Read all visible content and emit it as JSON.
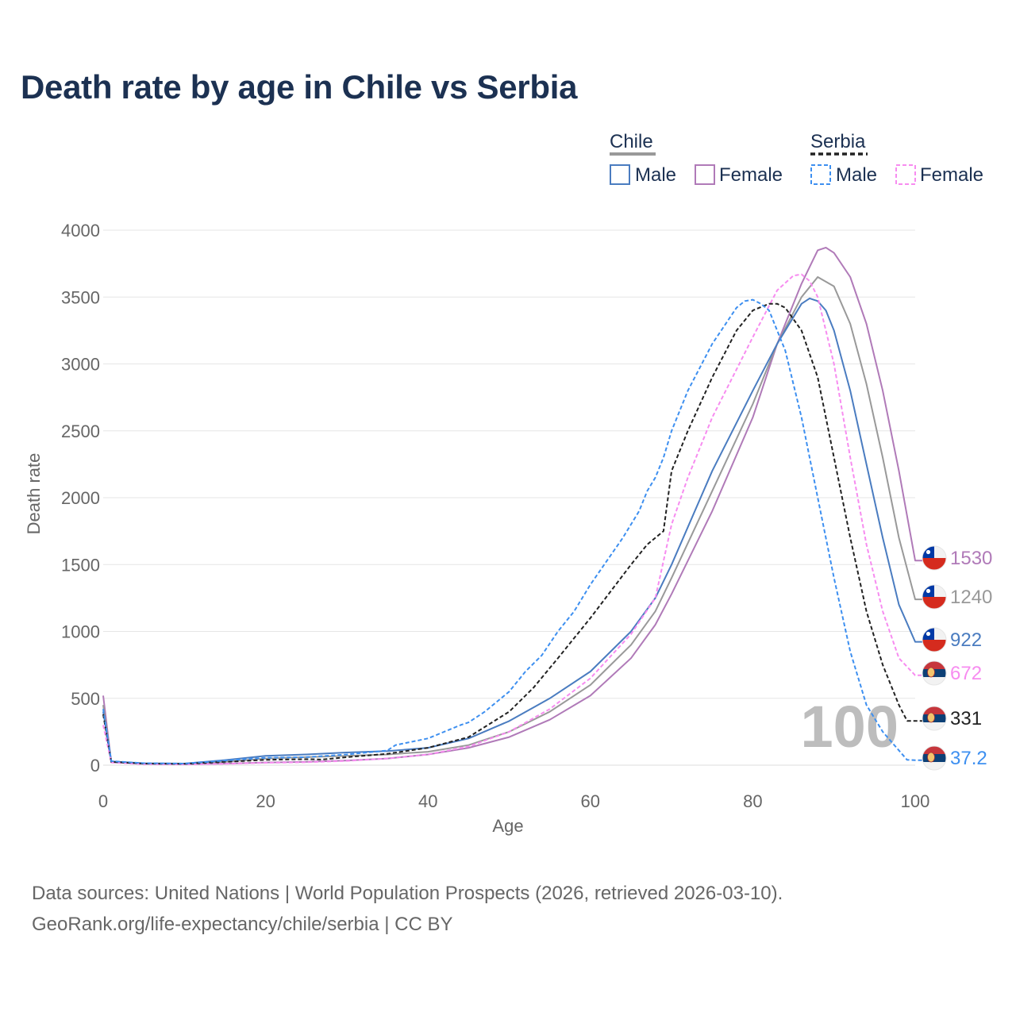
{
  "title": "Death rate by age in Chile vs Serbia",
  "footer": {
    "line1": "Data sources: United Nations | World Population Prospects (2026, retrieved 2026-03-10).",
    "line2": "GeoRank.org/life-expectancy/chile/serbia | CC BY"
  },
  "frame_label": "100",
  "legend": {
    "groups": [
      {
        "name": "Chile",
        "color": "#999999",
        "dashed": false
      },
      {
        "name": "Serbia",
        "color": "#222222",
        "dashed": true
      }
    ],
    "items": [
      {
        "label": "Male",
        "color": "#4a7cc0",
        "dashed": false
      },
      {
        "label": "Female",
        "color": "#b07ab8",
        "dashed": false
      },
      {
        "label": "Male",
        "color": "#3d8ff0",
        "dashed": true
      },
      {
        "label": "Female",
        "color": "#f78cf0",
        "dashed": true
      }
    ]
  },
  "chart_data": {
    "type": "line",
    "title": "Death rate by age in Chile vs Serbia",
    "xlabel": "Age",
    "ylabel": "Death rate",
    "xlim": [
      0,
      100
    ],
    "ylim": [
      0,
      4000
    ],
    "xticks": [
      0,
      20,
      40,
      60,
      80,
      100
    ],
    "yticks": [
      0,
      500,
      1000,
      1500,
      2000,
      2500,
      3000,
      3500,
      4000
    ],
    "grid": true,
    "legend_position": "top-right",
    "series": [
      {
        "name": "Chile Female",
        "country": "Chile",
        "sex": "Female",
        "color": "#b07ab8",
        "dashed": false,
        "end_label": "1530",
        "x": [
          0,
          1,
          5,
          10,
          15,
          20,
          25,
          30,
          35,
          40,
          45,
          50,
          55,
          60,
          65,
          68,
          70,
          75,
          80,
          83,
          86,
          88,
          89,
          90,
          92,
          94,
          96,
          98,
          100
        ],
        "y": [
          520,
          22,
          10,
          8,
          12,
          20,
          25,
          35,
          50,
          80,
          130,
          210,
          340,
          520,
          800,
          1050,
          1280,
          1900,
          2600,
          3150,
          3600,
          3850,
          3870,
          3830,
          3650,
          3300,
          2800,
          2200,
          1530
        ]
      },
      {
        "name": "Chile (total)",
        "country": "Chile",
        "sex": "Total",
        "color": "#999999",
        "dashed": false,
        "end_label": "1240",
        "x": [
          0,
          1,
          5,
          10,
          15,
          20,
          25,
          30,
          35,
          40,
          45,
          50,
          55,
          60,
          65,
          68,
          70,
          75,
          80,
          83,
          86,
          88,
          90,
          92,
          94,
          96,
          98,
          100
        ],
        "y": [
          450,
          25,
          12,
          10,
          25,
          50,
          60,
          70,
          80,
          100,
          150,
          250,
          400,
          600,
          900,
          1150,
          1400,
          2050,
          2700,
          3150,
          3500,
          3650,
          3580,
          3300,
          2850,
          2300,
          1700,
          1240
        ]
      },
      {
        "name": "Chile Male",
        "country": "Chile",
        "sex": "Male",
        "color": "#4a7cc0",
        "dashed": false,
        "end_label": "922",
        "x": [
          0,
          1,
          5,
          10,
          15,
          20,
          25,
          30,
          35,
          40,
          45,
          50,
          55,
          60,
          65,
          68,
          70,
          75,
          80,
          83,
          86,
          87,
          88,
          89,
          90,
          92,
          94,
          96,
          98,
          100
        ],
        "y": [
          400,
          28,
          14,
          12,
          38,
          70,
          80,
          95,
          105,
          130,
          200,
          330,
          500,
          700,
          1000,
          1250,
          1500,
          2200,
          2800,
          3150,
          3450,
          3490,
          3470,
          3400,
          3250,
          2800,
          2250,
          1700,
          1200,
          922
        ]
      },
      {
        "name": "Serbia Female",
        "country": "Serbia",
        "sex": "Female",
        "color": "#f78cf0",
        "dashed": true,
        "end_label": "672",
        "x": [
          0,
          1,
          5,
          10,
          15,
          20,
          25,
          30,
          35,
          40,
          45,
          50,
          55,
          60,
          65,
          68,
          70,
          72,
          75,
          80,
          83,
          85,
          86,
          87,
          88,
          90,
          92,
          94,
          96,
          98,
          100
        ],
        "y": [
          300,
          20,
          8,
          6,
          10,
          18,
          22,
          32,
          50,
          80,
          140,
          250,
          420,
          650,
          980,
          1250,
          1800,
          2150,
          2600,
          3200,
          3550,
          3660,
          3670,
          3620,
          3500,
          3000,
          2300,
          1650,
          1150,
          800,
          672
        ]
      },
      {
        "name": "Serbia (total)",
        "country": "Serbia",
        "sex": "Total",
        "color": "#222222",
        "dashed": true,
        "end_label": "331",
        "x": [
          0,
          1,
          5,
          10,
          15,
          20,
          25,
          27,
          30,
          35,
          40,
          45,
          50,
          53,
          56,
          60,
          65,
          67,
          69,
          70,
          72,
          75,
          78,
          80,
          82,
          83,
          84,
          86,
          88,
          90,
          92,
          94,
          96,
          98,
          99,
          100
        ],
        "y": [
          380,
          25,
          12,
          10,
          25,
          40,
          45,
          42,
          60,
          85,
          130,
          210,
          400,
          580,
          800,
          1100,
          1500,
          1650,
          1750,
          2200,
          2500,
          2900,
          3250,
          3400,
          3450,
          3450,
          3420,
          3250,
          2900,
          2300,
          1700,
          1150,
          750,
          450,
          331,
          331
        ]
      },
      {
        "name": "Serbia Male",
        "country": "Serbia",
        "sex": "Male",
        "color": "#3d8ff0",
        "dashed": true,
        "end_label": "37.2",
        "x": [
          0,
          1,
          5,
          10,
          15,
          20,
          25,
          30,
          35,
          36,
          40,
          44,
          45,
          47,
          50,
          52,
          54,
          56,
          58,
          60,
          64,
          66,
          67,
          68,
          69,
          70,
          72,
          75,
          78,
          79,
          80,
          81,
          82,
          84,
          86,
          88,
          90,
          92,
          94,
          96,
          97,
          99,
          100
        ],
        "y": [
          420,
          30,
          15,
          12,
          35,
          55,
          60,
          80,
          110,
          150,
          200,
          300,
          320,
          400,
          550,
          700,
          820,
          1000,
          1150,
          1350,
          1700,
          1900,
          2050,
          2150,
          2300,
          2500,
          2800,
          3150,
          3420,
          3470,
          3480,
          3450,
          3400,
          3100,
          2600,
          2000,
          1400,
          850,
          450,
          250,
          180,
          40,
          37.2
        ]
      }
    ]
  }
}
